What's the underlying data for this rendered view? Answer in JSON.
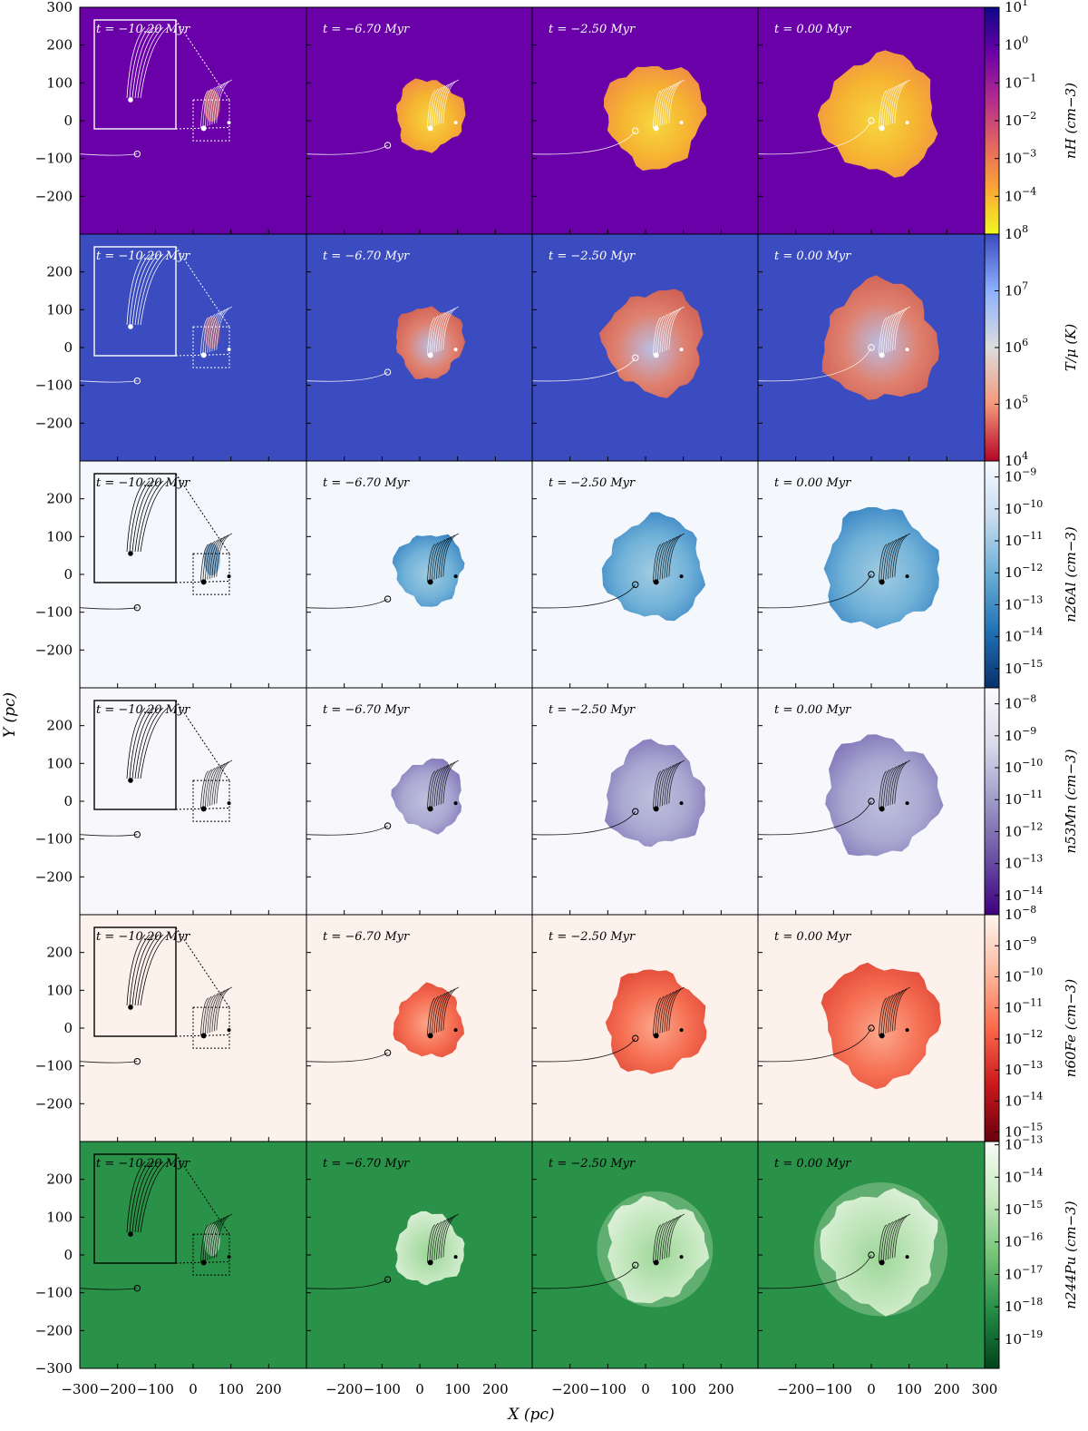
{
  "chart_data": {
    "type": "heatmap",
    "x_axis": {
      "label": "X (pc)",
      "range": [
        -300,
        300
      ]
    },
    "y_axis": {
      "label": "Y (pc)",
      "range": [
        -300,
        300
      ]
    },
    "columns": [
      {
        "time_label": "t = −10.20 Myr",
        "time_myr": -10.2,
        "x_ticks": [
          "−300",
          "−200",
          "−100",
          "0",
          "100",
          "200"
        ],
        "x_tick_values": [
          -300,
          -200,
          -100,
          0,
          100,
          200
        ]
      },
      {
        "time_label": "t = −6.70 Myr",
        "time_myr": -6.7,
        "x_ticks": [
          "−200",
          "−100",
          "0",
          "100",
          "200"
        ],
        "x_tick_values": [
          -200,
          -100,
          0,
          100,
          200
        ]
      },
      {
        "time_label": "t = −2.50 Myr",
        "time_myr": -2.5,
        "x_ticks": [
          "−200",
          "−100",
          "0",
          "100",
          "200"
        ],
        "x_tick_values": [
          -200,
          -100,
          0,
          100,
          200
        ]
      },
      {
        "time_label": "t = 0.00 Myr",
        "time_myr": 0.0,
        "x_ticks": [
          "−200",
          "−100",
          "0",
          "100",
          "200",
          "300"
        ],
        "x_tick_values": [
          -200,
          -100,
          0,
          100,
          200,
          300
        ]
      }
    ],
    "rows": [
      {
        "quantity": "nH",
        "colorbar_label": "nH (cm−3)",
        "background": "#6a00a8",
        "bubble_colors": [
          "#fdbd2b",
          "#f89540",
          "#fde33a"
        ],
        "line_color": "#ffffff",
        "colorbar_colors": [
          "#0d0887",
          "#6a00a8",
          "#b12a90",
          "#e16462",
          "#fca636",
          "#f0f921"
        ],
        "colorbar_ticks": [
          "10^1",
          "10^0",
          "10^-1",
          "10^-2",
          "10^-3",
          "10^-4"
        ],
        "colorbar_exponents": [
          1,
          0,
          -1,
          -2,
          -3,
          -4
        ],
        "colorbar_range_exp": [
          1,
          -5
        ]
      },
      {
        "quantity": "T/μ",
        "colorbar_label": "T/μ (K)",
        "background": "#3b4cc0",
        "bubble_colors": [
          "#e8836a",
          "#d6604d",
          "#c0c4e6"
        ],
        "line_color": "#ffffff",
        "colorbar_colors": [
          "#3b4cc0",
          "#8db0fe",
          "#dddddd",
          "#f4987a",
          "#b40426"
        ],
        "colorbar_ticks": [
          "10^8",
          "10^7",
          "10^6",
          "10^5",
          "10^4"
        ],
        "colorbar_exponents": [
          8,
          7,
          6,
          5,
          4
        ],
        "colorbar_range_exp": [
          8,
          4
        ]
      },
      {
        "quantity": "n26Al",
        "colorbar_label": "n26Al (cm−3)",
        "background": "#f4f8fd",
        "bubble_colors": [
          "#6aaed6",
          "#2f7fc1",
          "#9ecae1"
        ],
        "line_color": "#000000",
        "colorbar_colors": [
          "#f7fbff",
          "#c6dbef",
          "#6baed6",
          "#2171b5",
          "#08306b"
        ],
        "colorbar_ticks": [
          "10^-9",
          "10^-10",
          "10^-11",
          "10^-12",
          "10^-13",
          "10^-14",
          "10^-15"
        ],
        "colorbar_exponents": [
          -9,
          -10,
          -11,
          -12,
          -13,
          -14,
          -15
        ],
        "colorbar_range_exp": [
          -8.5,
          -15.6
        ]
      },
      {
        "quantity": "n53Mn",
        "colorbar_label": "n53Mn (cm−3)",
        "background": "#f8f8fc",
        "bubble_colors": [
          "#a6a4cf",
          "#7a6fb4",
          "#bcbddc"
        ],
        "line_color": "#000000",
        "colorbar_colors": [
          "#fcfbfd",
          "#dadaeb",
          "#9e9ac8",
          "#6a51a3",
          "#3f007d"
        ],
        "colorbar_ticks": [
          "10^-8",
          "10^-9",
          "10^-10",
          "10^-11",
          "10^-12",
          "10^-13",
          "10^-14"
        ],
        "colorbar_exponents": [
          -8,
          -9,
          -10,
          -11,
          -12,
          -13,
          -14
        ],
        "colorbar_range_exp": [
          -7.5,
          -14.6
        ]
      },
      {
        "quantity": "n60Fe",
        "colorbar_label": "n60Fe (cm−3)",
        "background": "#fdf1ec",
        "bubble_colors": [
          "#f5694c",
          "#e0402f",
          "#fca487"
        ],
        "line_color": "#000000",
        "colorbar_colors": [
          "#fff5f0",
          "#fcbba1",
          "#fb6a4a",
          "#cb181d",
          "#67000d"
        ],
        "colorbar_ticks": [
          "10^-8",
          "10^-9",
          "10^-10",
          "10^-11",
          "10^-12",
          "10^-13",
          "10^-14",
          "10^-15"
        ],
        "colorbar_exponents": [
          -8,
          -9,
          -10,
          -11,
          -12,
          -13,
          -14,
          -15
        ],
        "colorbar_range_exp": [
          -8,
          -15.3
        ]
      },
      {
        "quantity": "n244Pu",
        "colorbar_label": "n244Pu (cm−3)",
        "background": "#2a9148",
        "bubble_colors": [
          "#c7e9c0",
          "#e5f5e0",
          "#a1d99b"
        ],
        "line_color": "#000000",
        "colorbar_colors": [
          "#f7fcf5",
          "#c7e9c0",
          "#74c476",
          "#238b45",
          "#00441b"
        ],
        "colorbar_ticks": [
          "10^-13",
          "10^-14",
          "10^-15",
          "10^-16",
          "10^-17",
          "10^-18",
          "10^-19"
        ],
        "colorbar_exponents": [
          -13,
          -14,
          -15,
          -16,
          -17,
          -18,
          -19
        ],
        "colorbar_range_exp": [
          -12.9,
          -19.9
        ]
      }
    ],
    "y_ticks": [
      "300",
      "200",
      "100",
      "0",
      "−100",
      "−200",
      "−300"
    ],
    "y_tick_values": [
      300,
      200,
      100,
      0,
      -100,
      -200,
      -300
    ],
    "sun_positions_pc": [
      [
        -148,
        -88
      ],
      [
        -85,
        -65
      ],
      [
        -27,
        -27
      ],
      [
        0,
        0
      ]
    ],
    "bubble_radius_pc": [
      0,
      90,
      130,
      150
    ],
    "inset": {
      "present_in_column": 1
    }
  }
}
